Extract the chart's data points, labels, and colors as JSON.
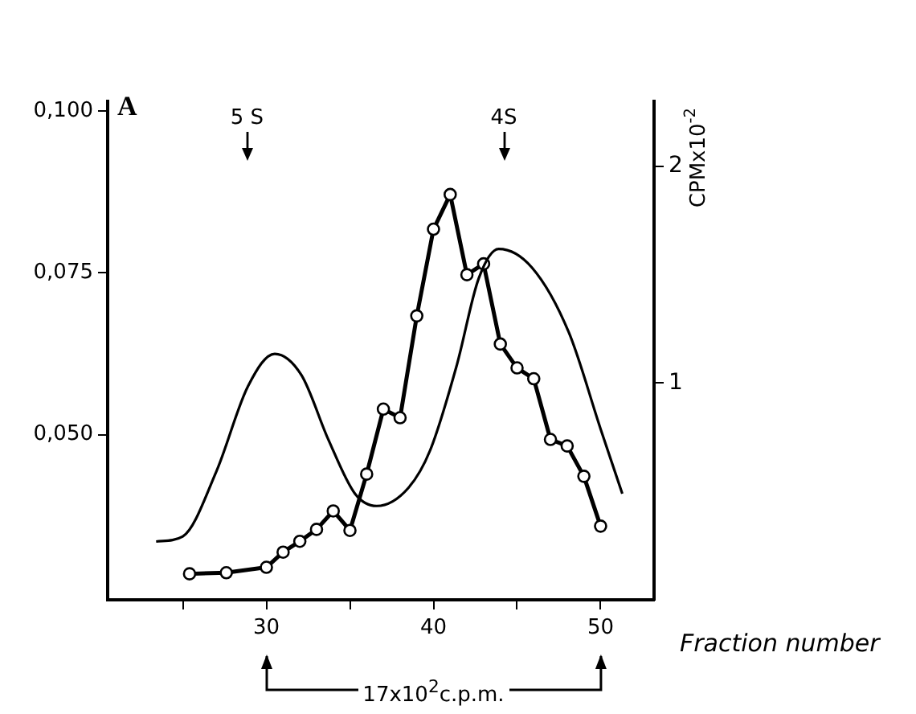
{
  "chart_data": {
    "type": "line",
    "ylabel": "A",
    "y2label": "CPMx10$^{-2}$",
    "xlabel": "Fraction number",
    "xlim": [
      20.5,
      53.2
    ],
    "xticks": [
      {
        "value": 25,
        "label": null
      },
      {
        "value": 30,
        "label": "30"
      },
      {
        "value": 35,
        "label": null
      },
      {
        "value": 40,
        "label": "40"
      },
      {
        "value": 45,
        "label": null
      },
      {
        "value": 50,
        "label": "50"
      }
    ],
    "ylim": [
      0.0245,
      0.1015
    ],
    "yticks": [
      {
        "value": 0.05,
        "label": "0,050"
      },
      {
        "value": 0.075,
        "label": "0,075"
      },
      {
        "value": 0.1,
        "label": "0,100"
      }
    ],
    "y2lim": [
      0,
      2.3
    ],
    "y2ticks": [
      1,
      2
    ],
    "grid": false,
    "legend": false,
    "series": [
      {
        "color": "#000000",
        "marker": "none",
        "x": [
          23.4,
          25.0,
          27.0,
          28.9,
          30.5,
          32.1,
          33.7,
          35.3,
          36.6,
          38.5,
          39.8,
          41.4,
          42.7,
          43.9,
          45.9,
          48.1,
          50.0,
          51.3
        ],
        "values": [
          0.0335,
          0.0343,
          0.0443,
          0.0575,
          0.0625,
          0.0592,
          0.0493,
          0.0409,
          0.039,
          0.0418,
          0.0476,
          0.0608,
          0.0741,
          0.0787,
          0.0758,
          0.0658,
          0.0509,
          0.0409
        ]
      },
      {
        "axis": "y2",
        "color": "#000000",
        "marker": "circle",
        "x": [
          25.4,
          27.6,
          30,
          31,
          32,
          33,
          34,
          35,
          36,
          37,
          38,
          39,
          40,
          41,
          42,
          43,
          44,
          45,
          46,
          47,
          48,
          49,
          50
        ],
        "values": [
          0.12,
          0.125,
          0.15,
          0.22,
          0.27,
          0.325,
          0.41,
          0.32,
          0.58,
          0.88,
          0.84,
          1.31,
          1.71,
          1.87,
          1.5,
          1.55,
          1.18,
          1.07,
          1.02,
          0.74,
          0.71,
          0.57,
          0.34
        ]
      }
    ],
    "annotations": [
      "5 S",
      "4S",
      "17x10$^{2}$c.p.m."
    ]
  }
}
